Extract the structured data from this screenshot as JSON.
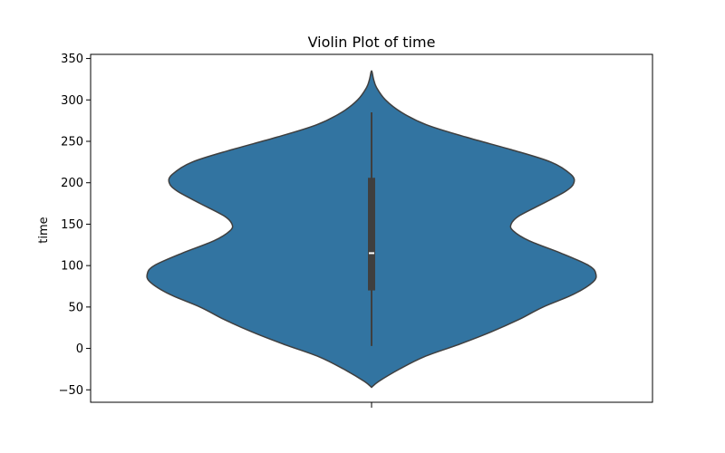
{
  "chart_data": {
    "type": "violin",
    "title": "Violin Plot of time",
    "xlabel": "",
    "ylabel": "time",
    "ylim": [
      -65,
      355
    ],
    "yticks": [
      -50,
      0,
      50,
      100,
      150,
      200,
      250,
      300,
      350
    ],
    "grid": false,
    "legend": "none",
    "colors": {
      "fill": "#3274a1",
      "edge": "#3f3f3f",
      "box": "#3f3f3f",
      "median": "#ffffff"
    },
    "density_profile": [
      {
        "y": -47,
        "half_width": 0.0
      },
      {
        "y": -40,
        "half_width": 0.07
      },
      {
        "y": -25,
        "half_width": 0.28
      },
      {
        "y": -10,
        "half_width": 0.53
      },
      {
        "y": 5,
        "half_width": 0.88
      },
      {
        "y": 20,
        "half_width": 1.2
      },
      {
        "y": 35,
        "half_width": 1.48
      },
      {
        "y": 50,
        "half_width": 1.72
      },
      {
        "y": 65,
        "half_width": 2.02
      },
      {
        "y": 80,
        "half_width": 2.22
      },
      {
        "y": 90,
        "half_width": 2.25
      },
      {
        "y": 100,
        "half_width": 2.18
      },
      {
        "y": 115,
        "half_width": 1.9
      },
      {
        "y": 130,
        "half_width": 1.58
      },
      {
        "y": 142,
        "half_width": 1.42
      },
      {
        "y": 150,
        "half_width": 1.4
      },
      {
        "y": 160,
        "half_width": 1.48
      },
      {
        "y": 175,
        "half_width": 1.72
      },
      {
        "y": 190,
        "half_width": 1.95
      },
      {
        "y": 200,
        "half_width": 2.03
      },
      {
        "y": 210,
        "half_width": 2.0
      },
      {
        "y": 225,
        "half_width": 1.8
      },
      {
        "y": 240,
        "half_width": 1.4
      },
      {
        "y": 255,
        "half_width": 0.95
      },
      {
        "y": 270,
        "half_width": 0.55
      },
      {
        "y": 285,
        "half_width": 0.3
      },
      {
        "y": 300,
        "half_width": 0.14
      },
      {
        "y": 315,
        "half_width": 0.05
      },
      {
        "y": 325,
        "half_width": 0.02
      },
      {
        "y": 335,
        "half_width": 0.0
      }
    ],
    "box": {
      "whisker_low": 3,
      "q1": 70,
      "median": 115,
      "q3": 206,
      "whisker_high": 285
    }
  }
}
